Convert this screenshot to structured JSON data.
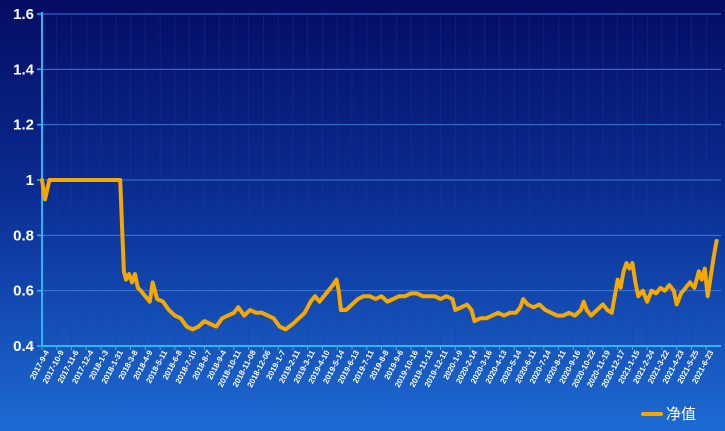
{
  "chart_data": {
    "type": "line",
    "title": "",
    "xlabel": "",
    "ylabel": "",
    "ylim": [
      0.4,
      1.6
    ],
    "y_ticks": [
      "0.4",
      "0.6",
      "0.8",
      "1",
      "1.2",
      "1.4",
      "1.6"
    ],
    "grid": "horizontal",
    "legend_position": "bottom-right",
    "x_tick_labels": [
      "2017-9-4",
      "2017-10-9",
      "2017-11-6",
      "2017-12-4",
      "2018-1-3",
      "2018-1-31",
      "2018-3-8",
      "2018-4-9",
      "2018-5-11",
      "2018-6-8",
      "2018-7-10",
      "2018-8-7",
      "2018-9-4",
      "2018-10-11",
      "2018-11-08",
      "2018-12-06",
      "2019-1-7",
      "2019-2-11",
      "2019-3-11",
      "2019-4-10",
      "2019-5-14",
      "2019-6-13",
      "2019-7-11",
      "2019-8-8",
      "2019-9-6",
      "2019-10-16",
      "2019-11-13",
      "2019-12-11",
      "2020-1-9",
      "2020-2-14",
      "2020-3-16",
      "2020-4-13",
      "2020-5-14",
      "2020-6-11",
      "2020-7-14",
      "2020-8-11",
      "2020-9-16",
      "2020-10-22",
      "2020-11-19",
      "2020-12-17",
      "2021-1-15",
      "2021-2-24",
      "2021-3-22",
      "2021-4-23",
      "2021-5-25",
      "2021-6-23"
    ],
    "series": [
      {
        "name": "净值",
        "color": "#f5a800",
        "points": [
          [
            0,
            1.0
          ],
          [
            0.2,
            0.93
          ],
          [
            0.5,
            1.0
          ],
          [
            1,
            1.0
          ],
          [
            2,
            1.0
          ],
          [
            3,
            1.0
          ],
          [
            4,
            1.0
          ],
          [
            5,
            1.0
          ],
          [
            5.3,
            1.0
          ],
          [
            5.45,
            0.8
          ],
          [
            5.55,
            0.67
          ],
          [
            5.7,
            0.64
          ],
          [
            5.9,
            0.66
          ],
          [
            6.1,
            0.63
          ],
          [
            6.3,
            0.66
          ],
          [
            6.5,
            0.61
          ],
          [
            6.7,
            0.6
          ],
          [
            7.0,
            0.58
          ],
          [
            7.3,
            0.56
          ],
          [
            7.5,
            0.63
          ],
          [
            7.8,
            0.57
          ],
          [
            8.2,
            0.56
          ],
          [
            8.6,
            0.53
          ],
          [
            9.0,
            0.51
          ],
          [
            9.4,
            0.5
          ],
          [
            9.8,
            0.47
          ],
          [
            10.2,
            0.46
          ],
          [
            10.6,
            0.47
          ],
          [
            11.0,
            0.49
          ],
          [
            11.4,
            0.48
          ],
          [
            11.8,
            0.47
          ],
          [
            12.2,
            0.5
          ],
          [
            12.6,
            0.51
          ],
          [
            13.0,
            0.52
          ],
          [
            13.3,
            0.54
          ],
          [
            13.7,
            0.51
          ],
          [
            14.1,
            0.53
          ],
          [
            14.5,
            0.52
          ],
          [
            14.9,
            0.52
          ],
          [
            15.3,
            0.51
          ],
          [
            15.7,
            0.5
          ],
          [
            16.1,
            0.47
          ],
          [
            16.5,
            0.46
          ],
          [
            17.0,
            0.48
          ],
          [
            17.4,
            0.5
          ],
          [
            17.8,
            0.52
          ],
          [
            18.2,
            0.56
          ],
          [
            18.5,
            0.58
          ],
          [
            18.8,
            0.56
          ],
          [
            19.1,
            0.58
          ],
          [
            19.4,
            0.6
          ],
          [
            19.7,
            0.62
          ],
          [
            19.95,
            0.64
          ],
          [
            20.1,
            0.6
          ],
          [
            20.25,
            0.53
          ],
          [
            20.6,
            0.53
          ],
          [
            21.0,
            0.55
          ],
          [
            21.4,
            0.57
          ],
          [
            21.8,
            0.58
          ],
          [
            22.2,
            0.58
          ],
          [
            22.6,
            0.57
          ],
          [
            23.0,
            0.58
          ],
          [
            23.4,
            0.56
          ],
          [
            23.8,
            0.57
          ],
          [
            24.2,
            0.58
          ],
          [
            24.6,
            0.58
          ],
          [
            25.0,
            0.59
          ],
          [
            25.4,
            0.59
          ],
          [
            25.8,
            0.58
          ],
          [
            26.2,
            0.58
          ],
          [
            26.6,
            0.58
          ],
          [
            27.0,
            0.57
          ],
          [
            27.4,
            0.58
          ],
          [
            27.8,
            0.57
          ],
          [
            28.0,
            0.53
          ],
          [
            28.4,
            0.54
          ],
          [
            28.8,
            0.55
          ],
          [
            29.1,
            0.53
          ],
          [
            29.3,
            0.49
          ],
          [
            29.7,
            0.5
          ],
          [
            30.1,
            0.5
          ],
          [
            30.5,
            0.51
          ],
          [
            30.9,
            0.52
          ],
          [
            31.3,
            0.51
          ],
          [
            31.7,
            0.52
          ],
          [
            32.1,
            0.52
          ],
          [
            32.4,
            0.54
          ],
          [
            32.6,
            0.57
          ],
          [
            32.9,
            0.55
          ],
          [
            33.3,
            0.54
          ],
          [
            33.7,
            0.55
          ],
          [
            34.1,
            0.53
          ],
          [
            34.5,
            0.52
          ],
          [
            34.9,
            0.51
          ],
          [
            35.3,
            0.51
          ],
          [
            35.7,
            0.52
          ],
          [
            36.1,
            0.51
          ],
          [
            36.5,
            0.53
          ],
          [
            36.7,
            0.56
          ],
          [
            36.9,
            0.53
          ],
          [
            37.2,
            0.51
          ],
          [
            37.6,
            0.53
          ],
          [
            38.0,
            0.55
          ],
          [
            38.3,
            0.53
          ],
          [
            38.6,
            0.52
          ],
          [
            38.8,
            0.58
          ],
          [
            39.0,
            0.64
          ],
          [
            39.2,
            0.61
          ],
          [
            39.4,
            0.67
          ],
          [
            39.6,
            0.7
          ],
          [
            39.8,
            0.68
          ],
          [
            40.0,
            0.7
          ],
          [
            40.2,
            0.63
          ],
          [
            40.4,
            0.58
          ],
          [
            40.7,
            0.6
          ],
          [
            41.0,
            0.56
          ],
          [
            41.3,
            0.6
          ],
          [
            41.6,
            0.59
          ],
          [
            41.9,
            0.61
          ],
          [
            42.2,
            0.6
          ],
          [
            42.5,
            0.62
          ],
          [
            42.8,
            0.6
          ],
          [
            43.0,
            0.55
          ],
          [
            43.3,
            0.59
          ],
          [
            43.6,
            0.61
          ],
          [
            43.9,
            0.63
          ],
          [
            44.2,
            0.61
          ],
          [
            44.5,
            0.67
          ],
          [
            44.7,
            0.64
          ],
          [
            44.9,
            0.68
          ],
          [
            45.1,
            0.58
          ],
          [
            45.3,
            0.65
          ],
          [
            45.5,
            0.72
          ],
          [
            45.7,
            0.78
          ]
        ]
      }
    ]
  }
}
